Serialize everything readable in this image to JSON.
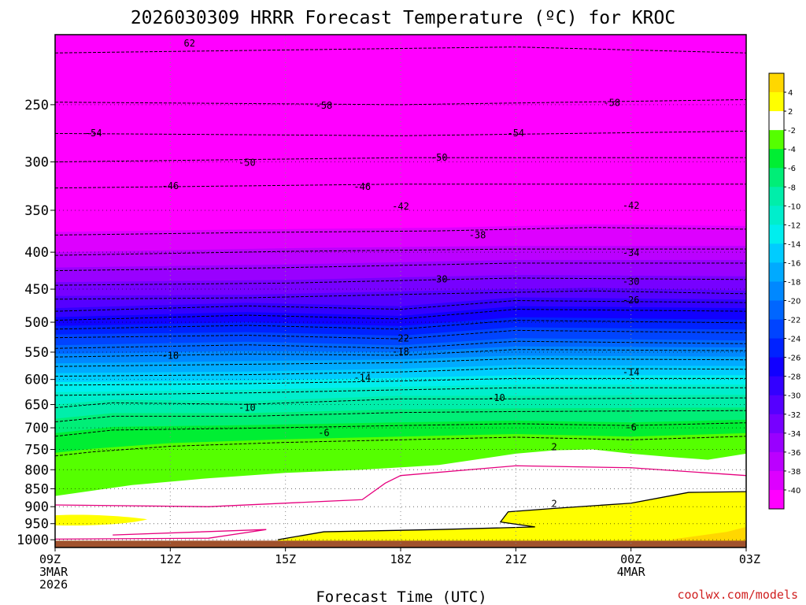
{
  "chart_data": {
    "type": "heatmap",
    "title": "2026030309 HRRR Forecast Temperature (ºC) for KROC",
    "xlabel": "Forecast Time (UTC)",
    "ylabel": "",
    "credit": "coolwx.com/models",
    "x_ticks": [
      {
        "label": "09Z",
        "sub": [
          "3MAR",
          "2026"
        ],
        "hour": 0
      },
      {
        "label": "12Z",
        "sub": [],
        "hour": 3
      },
      {
        "label": "15Z",
        "sub": [],
        "hour": 6
      },
      {
        "label": "18Z",
        "sub": [],
        "hour": 9
      },
      {
        "label": "21Z",
        "sub": [],
        "hour": 12
      },
      {
        "label": "00Z",
        "sub": [
          "4MAR"
        ],
        "hour": 15
      },
      {
        "label": "03Z",
        "sub": [],
        "hour": 18
      }
    ],
    "y_ticks": [
      250,
      300,
      350,
      400,
      450,
      500,
      550,
      600,
      650,
      700,
      750,
      800,
      850,
      900,
      950,
      1000
    ],
    "ylim": [
      200,
      1025
    ],
    "y_scale": "log-pressure (inverted)",
    "grid": "dotted",
    "colorbar": {
      "placement": "right",
      "labels": [
        "4",
        "2",
        "-2",
        "-4",
        "-6",
        "-8",
        "-10",
        "-12",
        "-14",
        "-16",
        "-18",
        "-20",
        "-22",
        "-24",
        "-26",
        "-28",
        "-30",
        "-32",
        "-34",
        "-36",
        "-38",
        "-40"
      ],
      "colors": [
        "#ffd700",
        "#ffff00",
        "#ffffff",
        "#55ff00",
        "#00ee33",
        "#00ee77",
        "#00eeaa",
        "#00eecc",
        "#00eeee",
        "#00ccff",
        "#00aaff",
        "#0088ff",
        "#0066ff",
        "#0044ff",
        "#0022ff",
        "#1100ff",
        "#3300ff",
        "#5500ff",
        "#7700ff",
        "#9900ff",
        "#bb00ff",
        "#dd00ff",
        "#ff00ff"
      ]
    },
    "ground_color": "#a0522d",
    "contour_labels": [
      {
        "text": "62",
        "hour": 3.5,
        "p": 205
      },
      {
        "text": "-58",
        "hour": 7,
        "p": 250
      },
      {
        "text": "-58",
        "hour": 14.5,
        "p": 248
      },
      {
        "text": "-54",
        "hour": 1,
        "p": 273
      },
      {
        "text": "-54",
        "hour": 12,
        "p": 273
      },
      {
        "text": "-50",
        "hour": 5,
        "p": 300
      },
      {
        "text": "-50",
        "hour": 10,
        "p": 295
      },
      {
        "text": "-46",
        "hour": 3,
        "p": 323
      },
      {
        "text": "-46",
        "hour": 8,
        "p": 324
      },
      {
        "text": "-42",
        "hour": 9,
        "p": 345
      },
      {
        "text": "-42",
        "hour": 15,
        "p": 344
      },
      {
        "text": "-38",
        "hour": 11,
        "p": 378
      },
      {
        "text": "-34",
        "hour": 15,
        "p": 400
      },
      {
        "text": "-30",
        "hour": 10,
        "p": 435
      },
      {
        "text": "-30",
        "hour": 15,
        "p": 438
      },
      {
        "text": "-26",
        "hour": 15,
        "p": 465
      },
      {
        "text": "-22",
        "hour": 9,
        "p": 525
      },
      {
        "text": "-18",
        "hour": 3,
        "p": 555
      },
      {
        "text": "-18",
        "hour": 9,
        "p": 548
      },
      {
        "text": "-14",
        "hour": 8,
        "p": 595
      },
      {
        "text": "-14",
        "hour": 15,
        "p": 585
      },
      {
        "text": "-10",
        "hour": 5,
        "p": 655
      },
      {
        "text": "-10",
        "hour": 11.5,
        "p": 635
      },
      {
        "text": "-6",
        "hour": 7,
        "p": 710
      },
      {
        "text": "-6",
        "hour": 15,
        "p": 697
      },
      {
        "text": "2",
        "hour": 13,
        "p": 742
      },
      {
        "text": "2",
        "hour": 13,
        "p": 890
      }
    ]
  }
}
